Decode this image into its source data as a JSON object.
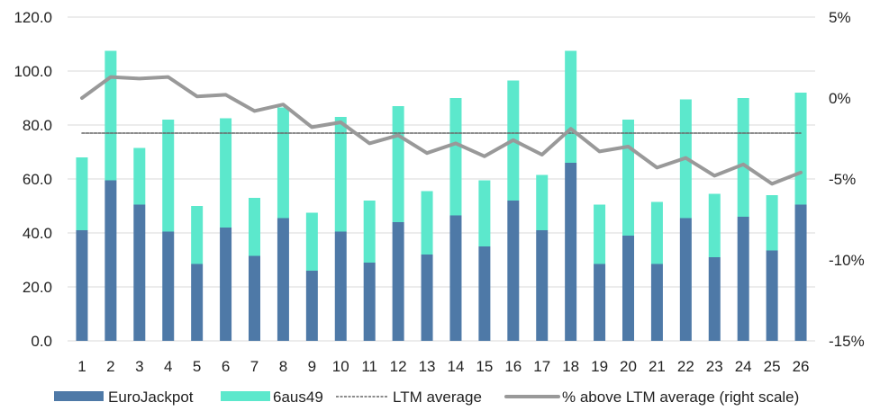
{
  "chart_data": {
    "type": "bar",
    "categories": [
      "1",
      "2",
      "3",
      "4",
      "5",
      "6",
      "7",
      "8",
      "9",
      "10",
      "11",
      "12",
      "13",
      "14",
      "15",
      "16",
      "17",
      "18",
      "19",
      "20",
      "21",
      "22",
      "23",
      "24",
      "25",
      "26"
    ],
    "series": [
      {
        "name": "EuroJackpot",
        "kind": "stacked-bar",
        "axis": "left",
        "color": "#4e79a7",
        "values": [
          41.0,
          59.5,
          50.5,
          40.5,
          28.5,
          42.0,
          31.5,
          45.5,
          26.0,
          40.5,
          29.0,
          44.0,
          32.0,
          46.5,
          35.0,
          52.0,
          41.0,
          66.0,
          28.5,
          39.0,
          28.5,
          45.5,
          31.0,
          46.0,
          33.5,
          50.5
        ]
      },
      {
        "name": "6aus49",
        "kind": "stacked-bar",
        "axis": "left",
        "color": "#5ce8cc",
        "values": [
          27.0,
          48.0,
          21.0,
          41.5,
          21.5,
          40.5,
          21.5,
          41.0,
          21.5,
          42.5,
          23.0,
          43.0,
          23.5,
          43.5,
          24.5,
          44.5,
          20.5,
          41.5,
          22.0,
          43.0,
          23.0,
          44.0,
          23.5,
          44.0,
          20.5,
          41.5
        ]
      },
      {
        "name": "LTM average",
        "kind": "dashed-line",
        "axis": "left",
        "color": "#666666",
        "values": [
          77.0,
          77.0,
          77.0,
          77.0,
          77.0,
          77.0,
          77.0,
          77.0,
          77.0,
          77.0,
          77.0,
          77.0,
          77.0,
          77.0,
          77.0,
          77.0,
          77.0,
          77.0,
          77.0,
          77.0,
          77.0,
          77.0,
          77.0,
          77.0,
          77.0,
          77.0
        ]
      },
      {
        "name": "% above LTM average (right scale)",
        "kind": "line",
        "axis": "right",
        "color": "#999999",
        "values": [
          0.0,
          1.3,
          1.2,
          1.3,
          0.1,
          0.2,
          -0.8,
          -0.4,
          -1.8,
          -1.5,
          -2.8,
          -2.3,
          -3.4,
          -2.8,
          -3.6,
          -2.6,
          -3.5,
          -1.9,
          -3.3,
          -3.0,
          -4.3,
          -3.7,
          -4.8,
          -4.1,
          -5.3,
          -4.6
        ]
      }
    ],
    "y_left": {
      "min": 0,
      "max": 120,
      "ticks": [
        "0.0",
        "20.0",
        "40.0",
        "60.0",
        "80.0",
        "100.0",
        "120.0"
      ]
    },
    "y_right": {
      "min": -15,
      "max": 5,
      "ticks": [
        "-15%",
        "-10%",
        "-5%",
        "0%",
        "5%"
      ]
    },
    "grid": true,
    "legend_position": "bottom"
  }
}
